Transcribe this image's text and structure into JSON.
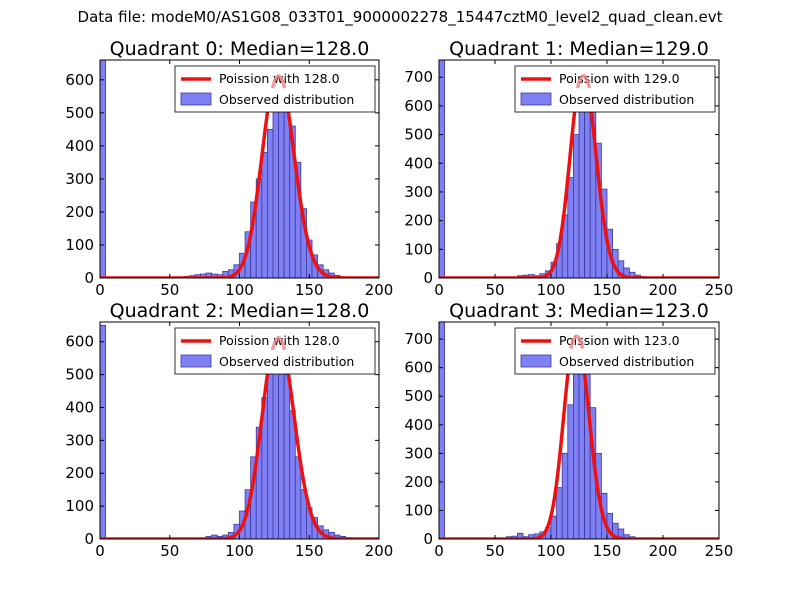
{
  "figure": {
    "suptitle": "Data file: modeM0/AS1G08_033T01_9000002278_15447cztM0_level2_quad_clean.evt",
    "colors": {
      "bar_fill": "#8080f5",
      "bar_edge": "#3a3a9a",
      "curve": "#ee1111",
      "curve_peak": "#f08080"
    }
  },
  "chart_data": [
    {
      "type": "bar",
      "title": "Quadrant 0: Median=128.0",
      "legend": [
        "Poission with 128.0",
        "Observed distribution"
      ],
      "legend_position": "top-right",
      "xlim": [
        0,
        200
      ],
      "ylim": [
        0,
        660
      ],
      "xticks": [
        0,
        50,
        100,
        150,
        200
      ],
      "yticks": [
        0,
        100,
        200,
        300,
        400,
        500,
        600
      ],
      "poisson_mean": 128.0,
      "poisson_peak": 625,
      "bin_width": 4,
      "bins": [
        [
          0,
          660
        ],
        [
          60,
          5
        ],
        [
          64,
          7
        ],
        [
          68,
          10
        ],
        [
          72,
          12
        ],
        [
          76,
          15
        ],
        [
          80,
          12
        ],
        [
          84,
          10
        ],
        [
          88,
          20
        ],
        [
          92,
          25
        ],
        [
          96,
          40
        ],
        [
          100,
          75
        ],
        [
          104,
          140
        ],
        [
          108,
          230
        ],
        [
          112,
          300
        ],
        [
          116,
          380
        ],
        [
          120,
          450
        ],
        [
          124,
          530
        ],
        [
          128,
          620
        ],
        [
          132,
          560
        ],
        [
          136,
          460
        ],
        [
          140,
          350
        ],
        [
          144,
          210
        ],
        [
          148,
          115
        ],
        [
          152,
          70
        ],
        [
          156,
          40
        ],
        [
          160,
          25
        ],
        [
          164,
          15
        ],
        [
          168,
          8
        ],
        [
          172,
          3
        ],
        [
          176,
          2
        ]
      ]
    },
    {
      "type": "bar",
      "title": "Quadrant 1: Median=129.0",
      "legend": [
        "Poission with 129.0",
        "Observed distribution"
      ],
      "legend_position": "top-right",
      "xlim": [
        0,
        250
      ],
      "ylim": [
        0,
        760
      ],
      "xticks": [
        0,
        50,
        100,
        150,
        200,
        250
      ],
      "yticks": [
        0,
        100,
        200,
        300,
        400,
        500,
        600,
        700
      ],
      "poisson_mean": 129.0,
      "poisson_peak": 720,
      "bin_width": 5,
      "bins": [
        [
          0,
          760
        ],
        [
          70,
          8
        ],
        [
          75,
          10
        ],
        [
          80,
          12
        ],
        [
          85,
          8
        ],
        [
          90,
          15
        ],
        [
          95,
          25
        ],
        [
          100,
          55
        ],
        [
          105,
          120
        ],
        [
          110,
          220
        ],
        [
          115,
          350
        ],
        [
          120,
          500
        ],
        [
          125,
          640
        ],
        [
          130,
          720
        ],
        [
          135,
          650
        ],
        [
          140,
          470
        ],
        [
          145,
          310
        ],
        [
          150,
          170
        ],
        [
          155,
          100
        ],
        [
          160,
          60
        ],
        [
          165,
          35
        ],
        [
          170,
          20
        ],
        [
          175,
          10
        ],
        [
          180,
          5
        ]
      ]
    },
    {
      "type": "bar",
      "title": "Quadrant 2: Median=128.0",
      "legend": [
        "Poission with 128.0",
        "Observed distribution"
      ],
      "legend_position": "top-right",
      "xlim": [
        0,
        200
      ],
      "ylim": [
        0,
        660
      ],
      "xticks": [
        0,
        50,
        100,
        150,
        200
      ],
      "yticks": [
        0,
        100,
        200,
        300,
        400,
        500,
        600
      ],
      "poisson_mean": 128.0,
      "poisson_peak": 625,
      "bin_width": 4,
      "bins": [
        [
          0,
          650
        ],
        [
          76,
          8
        ],
        [
          80,
          12
        ],
        [
          84,
          8
        ],
        [
          88,
          12
        ],
        [
          92,
          20
        ],
        [
          96,
          45
        ],
        [
          100,
          85
        ],
        [
          104,
          150
        ],
        [
          108,
          250
        ],
        [
          112,
          340
        ],
        [
          116,
          430
        ],
        [
          120,
          520
        ],
        [
          124,
          600
        ],
        [
          128,
          570
        ],
        [
          132,
          500
        ],
        [
          136,
          390
        ],
        [
          140,
          250
        ],
        [
          144,
          150
        ],
        [
          148,
          95
        ],
        [
          152,
          65
        ],
        [
          156,
          40
        ],
        [
          160,
          28
        ],
        [
          164,
          20
        ],
        [
          168,
          12
        ],
        [
          172,
          8
        ],
        [
          176,
          4
        ]
      ]
    },
    {
      "type": "bar",
      "title": "Quadrant 3: Median=123.0",
      "legend": [
        "Poission with 123.0",
        "Observed distribution"
      ],
      "legend_position": "top-right",
      "xlim": [
        0,
        250
      ],
      "ylim": [
        0,
        760
      ],
      "xticks": [
        0,
        50,
        100,
        150,
        200,
        250
      ],
      "yticks": [
        0,
        100,
        200,
        300,
        400,
        500,
        600,
        700
      ],
      "poisson_mean": 123.0,
      "poisson_peak": 725,
      "bin_width": 5,
      "bins": [
        [
          0,
          760
        ],
        [
          60,
          8
        ],
        [
          65,
          10
        ],
        [
          70,
          20
        ],
        [
          75,
          8
        ],
        [
          80,
          15
        ],
        [
          85,
          18
        ],
        [
          90,
          25
        ],
        [
          95,
          40
        ],
        [
          100,
          80
        ],
        [
          105,
          180
        ],
        [
          110,
          300
        ],
        [
          115,
          470
        ],
        [
          120,
          600
        ],
        [
          125,
          700
        ],
        [
          130,
          590
        ],
        [
          135,
          460
        ],
        [
          140,
          300
        ],
        [
          145,
          160
        ],
        [
          150,
          90
        ],
        [
          155,
          55
        ],
        [
          160,
          35
        ],
        [
          165,
          15
        ],
        [
          170,
          8
        ],
        [
          175,
          4
        ]
      ]
    }
  ]
}
